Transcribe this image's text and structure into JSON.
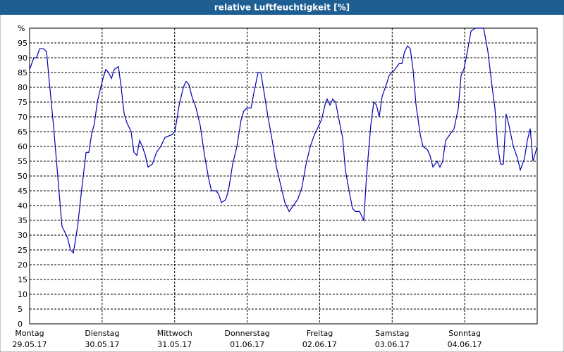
{
  "chart_data": {
    "type": "line",
    "title": "relative Luftfeuchtigkeit [%]",
    "xlim": [
      0,
      168
    ],
    "xticks": [
      {
        "value": 0,
        "label": [
          "Montag",
          "29.05.17"
        ]
      },
      {
        "value": 24,
        "label": [
          "Dienstag",
          "30.05.17"
        ]
      },
      {
        "value": 48,
        "label": [
          "Mittwoch",
          "31.05.17"
        ]
      },
      {
        "value": 72,
        "label": [
          "Donnerstag",
          "01.06.17"
        ]
      },
      {
        "value": 96,
        "label": [
          "Freitag",
          "02.06.17"
        ]
      },
      {
        "value": 120,
        "label": [
          "Samstag",
          "03.06.17"
        ]
      },
      {
        "value": 144,
        "label": [
          "Sonntag",
          "04.06.17"
        ]
      }
    ],
    "ylim": [
      0,
      100
    ],
    "yticks": [
      0,
      5,
      10,
      15,
      20,
      25,
      30,
      35,
      40,
      45,
      50,
      55,
      60,
      65,
      70,
      75,
      80,
      85,
      90,
      95,
      {
        "value": 100,
        "label": "%"
      }
    ],
    "grid": true,
    "series": [
      {
        "color": "#0000b4",
        "x": [
          0,
          1.4,
          2.3,
          3.3,
          4.7,
          5.6,
          6.5,
          7.9,
          9.3,
          10.7,
          12.6,
          13.5,
          14.5,
          15.9,
          17.3,
          18.7,
          19.6,
          20.5,
          21.5,
          22.4,
          23.3,
          24.3,
          25.2,
          26.1,
          27.1,
          28,
          29.4,
          30.3,
          31.3,
          32.2,
          33.6,
          34.5,
          35.5,
          36.4,
          37.3,
          38.3,
          39.2,
          40.6,
          42,
          43.4,
          44.8,
          47.1,
          48.1,
          49.5,
          50.9,
          51.8,
          52.7,
          53.7,
          55.1,
          56.5,
          57.9,
          59.3,
          60.2,
          61.6,
          62.5,
          63.5,
          64.9,
          65.8,
          67.2,
          68.6,
          70,
          70.9,
          71.9,
          73.3,
          74.2,
          75.6,
          76.5,
          77.5,
          78.9,
          80.3,
          81.7,
          83.1,
          84.5,
          85.9,
          87.3,
          88.7,
          90.1,
          91.5,
          92.9,
          94.3,
          95.7,
          96.6,
          98,
          98.5,
          99.4,
          100.3,
          101.3,
          102.2,
          103.6,
          104.5,
          105.9,
          106.9,
          107.8,
          109.2,
          110.6,
          111.5,
          112.9,
          113.9,
          114.8,
          115.7,
          116.7,
          118.1,
          119,
          119.9,
          120.9,
          122.3,
          123.2,
          124.1,
          125.1,
          126,
          126.9,
          127.9,
          129.3,
          130.2,
          131.6,
          132.5,
          133.5,
          134.9,
          135.8,
          136.7,
          137.7,
          139.1,
          140.5,
          141.9,
          142.8,
          143.7,
          144.7,
          146.1,
          147.5,
          148.9,
          150.3,
          151.7,
          153.1,
          154,
          154.9,
          155.9,
          156.8,
          157.7,
          158.7,
          160.1,
          161.5,
          162.4,
          163.8,
          164.7,
          165.7,
          166.6,
          168
        ],
        "values": [
          86,
          90,
          90,
          93,
          93,
          92,
          82,
          67,
          50,
          33,
          29,
          25,
          24,
          33,
          46,
          58,
          58,
          64,
          68,
          75,
          79,
          83,
          86,
          85,
          83,
          86,
          87,
          80,
          71,
          68,
          65,
          58,
          57,
          62,
          60,
          57,
          53,
          54,
          58,
          60,
          63,
          64,
          65,
          74,
          80,
          82,
          81,
          77,
          73,
          67,
          57,
          49,
          45,
          45,
          44,
          41,
          42,
          45,
          54,
          60,
          69,
          72,
          73,
          73,
          78,
          85,
          85,
          79,
          70,
          62,
          53,
          47,
          41,
          38,
          40,
          42,
          46,
          54,
          60,
          64,
          67,
          69,
          75,
          76,
          74,
          76,
          75,
          70,
          63,
          52,
          44,
          39,
          38,
          38,
          35,
          50,
          67,
          75,
          74,
          70,
          77,
          81,
          84,
          85,
          86,
          88,
          88,
          92,
          94,
          93,
          86,
          74,
          64,
          60,
          59,
          57,
          53,
          55,
          53,
          55,
          62,
          64,
          66,
          73,
          84,
          86,
          91,
          99,
          100,
          100,
          100,
          92,
          80,
          73,
          60,
          54,
          54,
          71,
          67,
          60,
          56,
          52,
          56,
          62,
          66,
          55,
          60
        ]
      }
    ]
  }
}
